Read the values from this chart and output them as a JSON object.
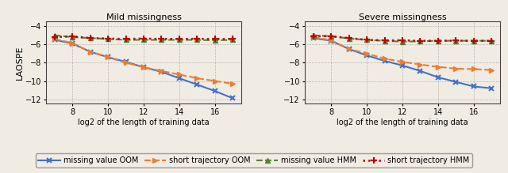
{
  "title_left": "Mild missingness",
  "title_right": "Severe missingness",
  "xlabel": "log2 of the length of training data",
  "ylabel": "LAOSPE",
  "xlim": [
    6.5,
    17.5
  ],
  "ylim": [
    -12.5,
    -3.5
  ],
  "yticks": [
    -12,
    -10,
    -8,
    -6,
    -4
  ],
  "xticks": [
    8,
    10,
    12,
    14,
    16
  ],
  "bg_color": "#f0ece4",
  "mild": {
    "mv_oom_x": [
      7,
      8,
      9,
      10,
      11,
      12,
      13,
      14,
      15,
      16,
      17
    ],
    "mv_oom_y": [
      -5.5,
      -5.9,
      -6.8,
      -7.4,
      -7.9,
      -8.5,
      -9.0,
      -9.7,
      -10.4,
      -11.1,
      -11.9
    ],
    "st_oom_x": [
      7,
      8,
      9,
      10,
      11,
      12,
      13,
      14,
      15,
      16,
      17
    ],
    "st_oom_y": [
      -5.4,
      -5.85,
      -6.8,
      -7.4,
      -8.0,
      -8.5,
      -8.9,
      -9.3,
      -9.7,
      -10.0,
      -10.3
    ],
    "mv_hmm_x": [
      7,
      8,
      9,
      10,
      11,
      12,
      13,
      14,
      15,
      16,
      17
    ],
    "mv_hmm_y": [
      -5.0,
      -5.2,
      -5.3,
      -5.4,
      -5.5,
      -5.5,
      -5.5,
      -5.5,
      -5.5,
      -5.55,
      -5.5
    ],
    "st_hmm_x": [
      7,
      8,
      9,
      10,
      11,
      12,
      13,
      14,
      15,
      16,
      17
    ],
    "st_hmm_y": [
      -5.2,
      -5.1,
      -5.3,
      -5.35,
      -5.4,
      -5.35,
      -5.4,
      -5.4,
      -5.38,
      -5.4,
      -5.4
    ]
  },
  "severe": {
    "mv_oom_x": [
      7,
      8,
      9,
      10,
      11,
      12,
      13,
      14,
      15,
      16,
      17
    ],
    "mv_oom_y": [
      -5.3,
      -5.6,
      -6.5,
      -7.2,
      -7.8,
      -8.3,
      -8.9,
      -9.6,
      -10.1,
      -10.6,
      -10.8
    ],
    "st_oom_x": [
      7,
      8,
      9,
      10,
      11,
      12,
      13,
      14,
      15,
      16,
      17
    ],
    "st_oom_y": [
      -5.2,
      -5.55,
      -6.5,
      -7.0,
      -7.55,
      -7.9,
      -8.2,
      -8.45,
      -8.65,
      -8.7,
      -8.8
    ],
    "mv_hmm_x": [
      7,
      8,
      9,
      10,
      11,
      12,
      13,
      14,
      15,
      16,
      17
    ],
    "mv_hmm_y": [
      -5.0,
      -5.1,
      -5.35,
      -5.5,
      -5.6,
      -5.7,
      -5.65,
      -5.6,
      -5.6,
      -5.6,
      -5.6
    ],
    "st_hmm_x": [
      7,
      8,
      9,
      10,
      11,
      12,
      13,
      14,
      15,
      16,
      17
    ],
    "st_hmm_y": [
      -5.1,
      -5.1,
      -5.3,
      -5.5,
      -5.55,
      -5.55,
      -5.6,
      -5.6,
      -5.58,
      -5.6,
      -5.6
    ]
  },
  "colors": {
    "mv_oom": "#4472c4",
    "st_oom": "#ed7d31",
    "mv_hmm": "#548235",
    "st_hmm": "#c00000"
  },
  "legend_labels": [
    "missing value OOM",
    "short trajectory OOM",
    "missing value HMM",
    "short trajectory HMM"
  ]
}
